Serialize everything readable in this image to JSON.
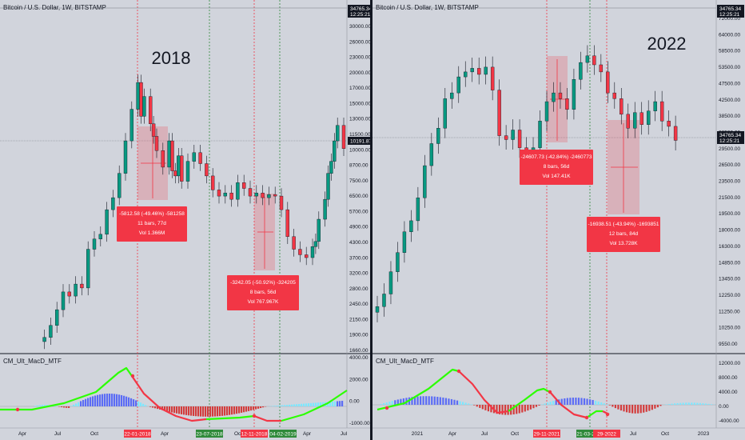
{
  "colors": {
    "background": "#d1d4dc",
    "up": "#089981",
    "down": "#f23645",
    "measure_box": "#f23645",
    "macd_green": "#2cff00",
    "macd_red": "#f23645",
    "hist_blue": "#5b6cf5",
    "hist_cyan": "#7de7ff",
    "hist_red": "#d33c3c",
    "date_tag_red": "#f23645",
    "date_tag_green": "#2f8a3a"
  },
  "left": {
    "symbol": "Bitcoin / U.S. Dollar, 1W, BITSTAMP",
    "big_label": "2018",
    "price_tag": "34765.34",
    "time_tag": "12:25:21",
    "current_price": "10191.87",
    "indicator_label": "CM_Ult_MacD_MTF",
    "price_axis": [
      "30000.00",
      "26000.00",
      "23000.00",
      "20000.00",
      "17000.00",
      "15000.00",
      "13000.00",
      "11500.00",
      "10000.00",
      "8700.00",
      "7500.00",
      "6500.00",
      "5700.00",
      "4900.00",
      "4300.00",
      "3700.00",
      "3200.00",
      "2800.00",
      "2450.00",
      "2150.00",
      "1900.00",
      "1660.00"
    ],
    "macd_axis": [
      "4000.00",
      "2000.00",
      "0.00",
      "-1000.00"
    ],
    "time_axis": [
      "Apr",
      "Jul",
      "Oct",
      "Apr",
      "Oct",
      "Apr",
      "Jul"
    ],
    "date_tags": [
      {
        "text": "22-01-2018",
        "kind": "red"
      },
      {
        "text": "23-07-2018",
        "kind": "green"
      },
      {
        "text": "12-11-2018",
        "kind": "red"
      },
      {
        "text": "04-02-2019",
        "kind": "green"
      }
    ],
    "measures": [
      {
        "line1": "-5812.58 (-49.46%) -581258",
        "line2": "11 bars, 77d",
        "line3": "Vol 1.366M"
      },
      {
        "line1": "-3242.05 (-50.92%) -324205",
        "line2": "8 bars, 56d",
        "line3": "Vol 767.967K"
      }
    ]
  },
  "right": {
    "symbol": "Bitcoin / U.S. Dollar, 1W, BITSTAMP",
    "big_label": "2022",
    "price_tag": "34765.34",
    "time_tag": "12:25:21",
    "indicator_label": "CM_Ult_MacD_MTF",
    "price_axis": [
      "72000.00",
      "64000.00",
      "58500.00",
      "53500.00",
      "47500.00",
      "42500.00",
      "38500.00",
      "32500.00",
      "29500.00",
      "26500.00",
      "23500.00",
      "21500.00",
      "19500.00",
      "18000.00",
      "16300.00",
      "14850.00",
      "13450.00",
      "12250.00",
      "11250.00",
      "10250.00",
      "9550.00"
    ],
    "macd_axis": [
      "12000.00",
      "8000.00",
      "4000.00",
      "0.00",
      "-4000.00"
    ],
    "time_axis": [
      "2021",
      "Apr",
      "Jul",
      "Oct",
      "Apr",
      "Jul",
      "Oct",
      "2023"
    ],
    "date_tags": [
      {
        "text": "29-11-2021",
        "kind": "red"
      },
      {
        "text": "21-03-2022",
        "kind": "green"
      },
      {
        "text": "29-2022",
        "kind": "red"
      }
    ],
    "measures": [
      {
        "line1": "-24607.73 (-42.84%) -2460773",
        "line2": "8 bars, 56d",
        "line3": "Vol 147.41K"
      },
      {
        "line1": "-16938.51 (-43.94%) -1693851",
        "line2": "12 bars, 84d",
        "line3": "Vol 13.728K"
      }
    ]
  },
  "chart_data": [
    {
      "type": "candlestick",
      "title": "Bitcoin / U.S. Dollar, 1W, BITSTAMP",
      "annotation": "2018",
      "y_scale": "log",
      "ylim": [
        1500,
        32000
      ],
      "close_path": [
        [
          0.04,
          1600
        ],
        [
          0.06,
          1800
        ],
        [
          0.08,
          2100
        ],
        [
          0.1,
          2500
        ],
        [
          0.12,
          2400
        ],
        [
          0.14,
          2700
        ],
        [
          0.16,
          2600
        ],
        [
          0.18,
          3800
        ],
        [
          0.2,
          4200
        ],
        [
          0.22,
          4400
        ],
        [
          0.24,
          5600
        ],
        [
          0.26,
          6300
        ],
        [
          0.28,
          8000
        ],
        [
          0.3,
          11000
        ],
        [
          0.32,
          15000
        ],
        [
          0.34,
          19500
        ],
        [
          0.35,
          14000
        ],
        [
          0.36,
          17000
        ],
        [
          0.38,
          13000
        ],
        [
          0.39,
          11500
        ],
        [
          0.4,
          10000
        ],
        [
          0.42,
          8500
        ],
        [
          0.44,
          11000
        ],
        [
          0.45,
          8200
        ],
        [
          0.46,
          7800
        ],
        [
          0.47,
          9500
        ],
        [
          0.48,
          7400
        ],
        [
          0.5,
          9000
        ],
        [
          0.52,
          9800
        ],
        [
          0.54,
          8800
        ],
        [
          0.56,
          7800
        ],
        [
          0.58,
          6800
        ],
        [
          0.6,
          6400
        ],
        [
          0.62,
          6600
        ],
        [
          0.64,
          6200
        ],
        [
          0.66,
          7300
        ],
        [
          0.68,
          6900
        ],
        [
          0.7,
          6400
        ],
        [
          0.72,
          6600
        ],
        [
          0.74,
          6300
        ],
        [
          0.76,
          6500
        ],
        [
          0.78,
          6400
        ],
        [
          0.8,
          5600
        ],
        [
          0.82,
          4300
        ],
        [
          0.84,
          3800
        ],
        [
          0.86,
          3600
        ],
        [
          0.88,
          3500
        ],
        [
          0.9,
          3900
        ],
        [
          0.91,
          4100
        ],
        [
          0.92,
          5100
        ],
        [
          0.94,
          6200
        ],
        [
          0.95,
          8000
        ],
        [
          0.96,
          9000
        ],
        [
          0.97,
          11000
        ],
        [
          0.98,
          12800
        ],
        [
          1.0,
          10200
        ]
      ]
    },
    {
      "type": "candlestick",
      "title": "Bitcoin / U.S. Dollar, 1W, BITSTAMP",
      "annotation": "2022",
      "y_scale": "log",
      "ylim": [
        9000,
        76000
      ],
      "close_path": [
        [
          0.0,
          10500
        ],
        [
          0.02,
          11500
        ],
        [
          0.04,
          13500
        ],
        [
          0.06,
          15500
        ],
        [
          0.08,
          18000
        ],
        [
          0.1,
          19500
        ],
        [
          0.12,
          23000
        ],
        [
          0.14,
          29000
        ],
        [
          0.16,
          34000
        ],
        [
          0.18,
          38000
        ],
        [
          0.2,
          47000
        ],
        [
          0.22,
          49000
        ],
        [
          0.24,
          55000
        ],
        [
          0.26,
          57000
        ],
        [
          0.28,
          58500
        ],
        [
          0.3,
          56000
        ],
        [
          0.32,
          59000
        ],
        [
          0.34,
          50000
        ],
        [
          0.36,
          36000
        ],
        [
          0.38,
          35000
        ],
        [
          0.4,
          37500
        ],
        [
          0.42,
          33000
        ],
        [
          0.44,
          31500
        ],
        [
          0.46,
          33000
        ],
        [
          0.48,
          40000
        ],
        [
          0.5,
          46000
        ],
        [
          0.52,
          49000
        ],
        [
          0.54,
          47000
        ],
        [
          0.56,
          43500
        ],
        [
          0.58,
          54000
        ],
        [
          0.6,
          61000
        ],
        [
          0.62,
          64000
        ],
        [
          0.64,
          60000
        ],
        [
          0.66,
          57000
        ],
        [
          0.68,
          49000
        ],
        [
          0.7,
          47000
        ],
        [
          0.72,
          42000
        ],
        [
          0.74,
          38000
        ],
        [
          0.76,
          42500
        ],
        [
          0.78,
          39000
        ],
        [
          0.8,
          43000
        ],
        [
          0.82,
          46000
        ],
        [
          0.84,
          40000
        ],
        [
          0.86,
          38500
        ],
        [
          0.88,
          34800
        ]
      ]
    }
  ]
}
